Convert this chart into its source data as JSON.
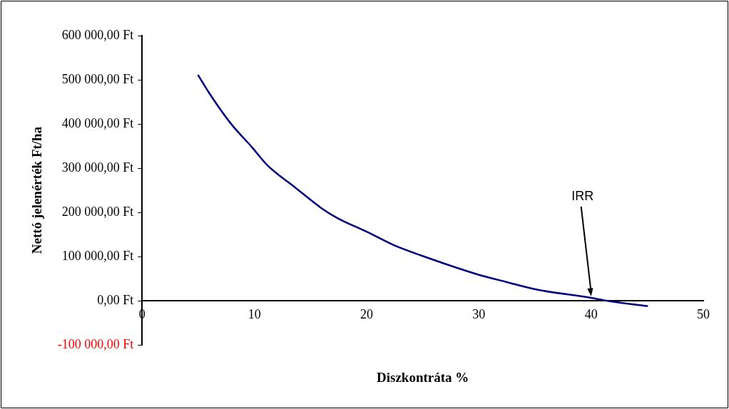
{
  "chart_data": {
    "type": "line",
    "xlabel": "Diszkontráta %",
    "ylabel": "Nettó jelenérték Ft/ha",
    "series": [
      {
        "color": "#000080",
        "x": [
          5,
          6,
          7.9,
          9.8,
          11.1,
          13.6,
          16,
          17.4,
          20.1,
          22.4,
          24.9,
          29.7,
          32.5,
          35.2,
          39.9,
          42.1,
          45
        ],
        "values": [
          510000,
          469000,
          401000,
          347000,
          308000,
          257000,
          209000,
          187000,
          155000,
          126000,
          102000,
          61000,
          42000,
          25000,
          7000,
          -3000,
          -12000
        ]
      }
    ],
    "xlim": [
      0,
      50
    ],
    "xticks": [
      0,
      10,
      20,
      30,
      40,
      50
    ],
    "ylim": [
      -100000,
      600000
    ],
    "yticks": [
      {
        "value": -100000,
        "label": "-100 000,00 Ft"
      },
      {
        "value": 0,
        "label": "0,00 Ft"
      },
      {
        "value": 100000,
        "label": "100 000,00 Ft"
      },
      {
        "value": 200000,
        "label": "200 000,00 Ft"
      },
      {
        "value": 300000,
        "label": "300 000,00 Ft"
      },
      {
        "value": 400000,
        "label": "400 000,00 Ft"
      },
      {
        "value": 500000,
        "label": "500 000,00 Ft"
      },
      {
        "value": 600000,
        "label": "600 000,00 Ft"
      }
    ],
    "annotations": [
      {
        "text": "IRR",
        "x": 40,
        "y": 10000
      }
    ],
    "grid": false,
    "legend": false,
    "marker": "none",
    "line_style": "solid"
  }
}
